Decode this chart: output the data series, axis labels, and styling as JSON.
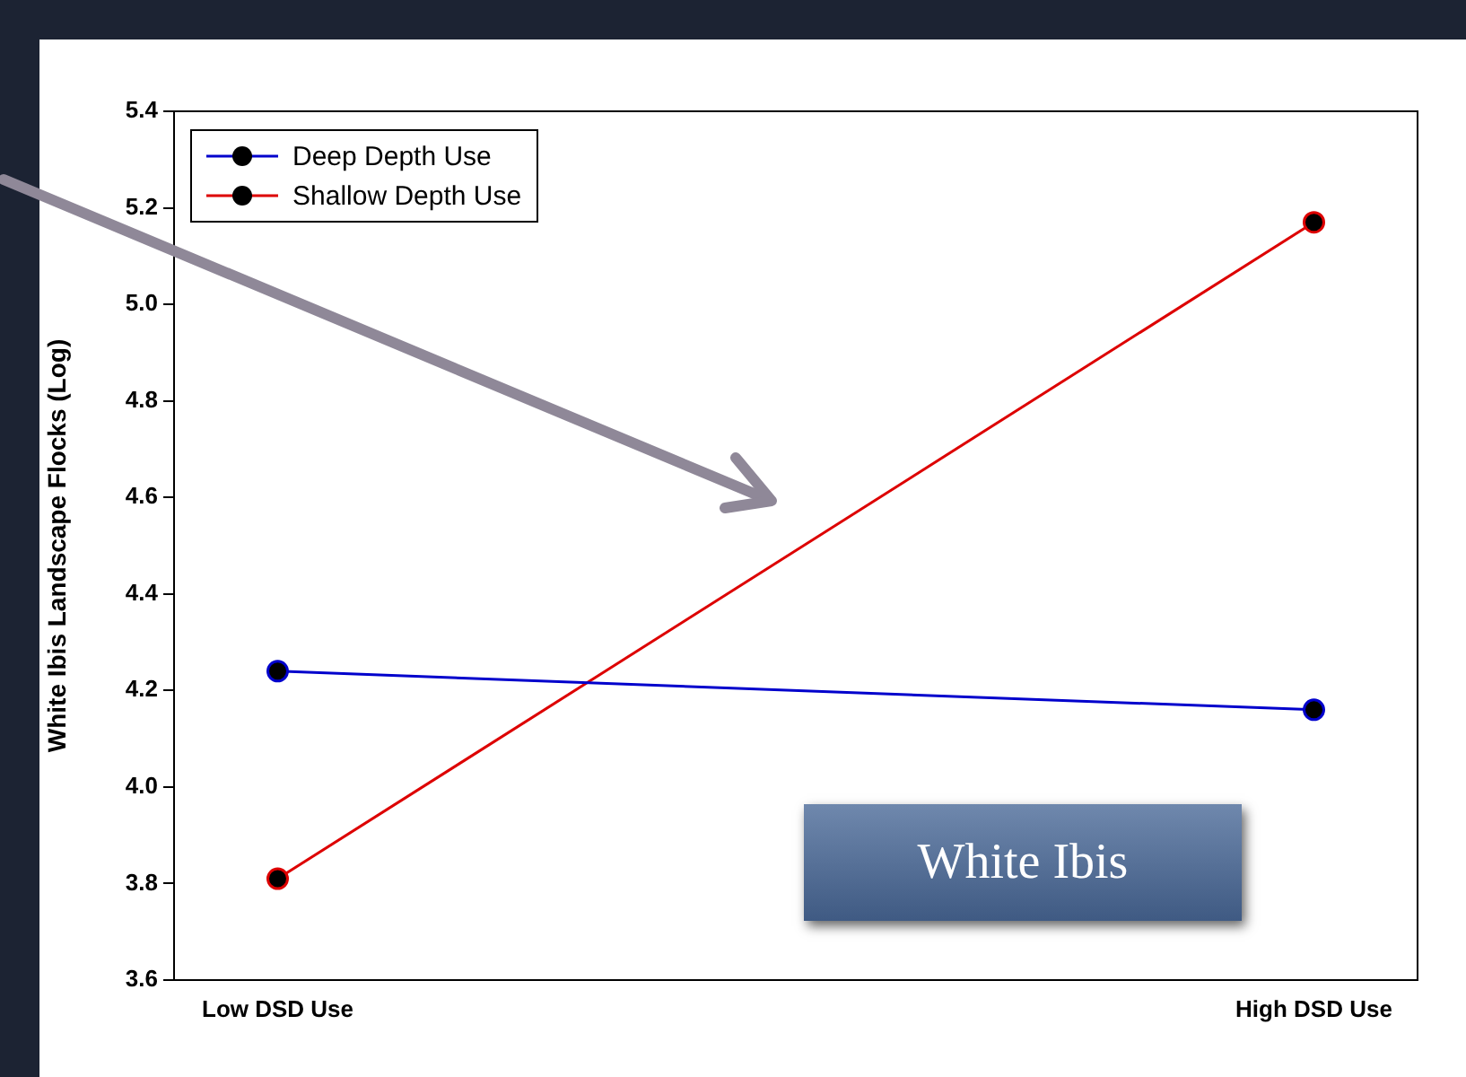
{
  "chart_data": {
    "type": "line",
    "ylabel": "White Ibis Landscape Flocks (Log)",
    "categories": [
      "Low DSD Use",
      "High DSD Use"
    ],
    "series": [
      {
        "name": "Deep Depth Use",
        "color": "#0000cc",
        "values": [
          4.24,
          4.16
        ]
      },
      {
        "name": "Shallow Depth Use",
        "color": "#dd0000",
        "values": [
          3.81,
          5.17
        ]
      }
    ],
    "ylim": [
      3.6,
      5.4
    ],
    "yticks": [
      3.6,
      3.8,
      {
        "value": 4,
        "label": "4.0"
      },
      4.2,
      4.4,
      4.6,
      4.8,
      {
        "value": 5,
        "label": "5.0"
      },
      5.2,
      5.4
    ],
    "grid": false,
    "legend": "top left",
    "marker": "circle",
    "line_style": "solid",
    "annotations": [
      "White Ibis"
    ]
  }
}
